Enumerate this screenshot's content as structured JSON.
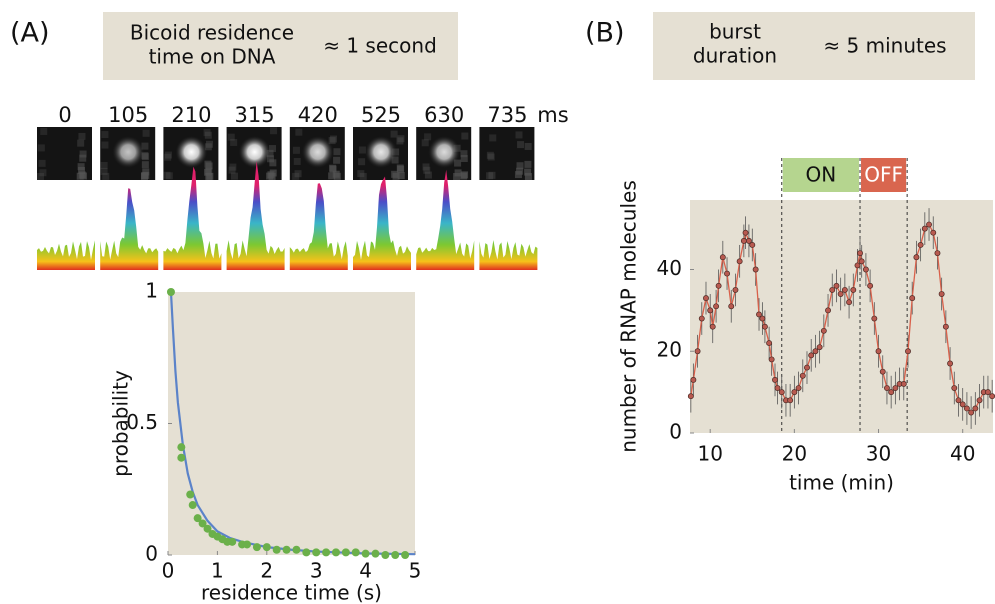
{
  "panels": [
    {
      "label": "(A)",
      "note_lines": [
        "Bicoid residence",
        "time on DNA"
      ],
      "note_value": "≈ 1 second"
    },
    {
      "label": "(B)",
      "note_lines": [
        "burst",
        "duration"
      ],
      "note_value": "≈ 5 minutes"
    }
  ],
  "frames": {
    "times": [
      "0",
      "105",
      "210",
      "315",
      "420",
      "525",
      "630",
      "735"
    ],
    "unit": "ms"
  },
  "chart_data": [
    {
      "type": "scatter",
      "x_label": "residence time (s)",
      "y_label": "probability",
      "xlim": [
        0,
        5
      ],
      "ylim": [
        0,
        1
      ],
      "xticks": [
        0,
        1,
        2,
        3,
        4,
        5
      ],
      "yticks": [
        0,
        0.5,
        1
      ],
      "series": [
        {
          "type": "line",
          "color": "#5b83c9",
          "x": [
            0.06,
            0.1,
            0.15,
            0.2,
            0.3,
            0.4,
            0.5,
            0.6,
            0.8,
            1.0,
            1.25,
            1.5,
            2,
            2.5,
            3,
            4,
            5
          ],
          "values": [
            1,
            0.86,
            0.7,
            0.58,
            0.42,
            0.31,
            0.24,
            0.19,
            0.13,
            0.09,
            0.065,
            0.05,
            0.03,
            0.02,
            0.013,
            0.006,
            0.003
          ]
        },
        {
          "type": "scatter",
          "color": "#6bb04a",
          "x": [
            0.06,
            0.27,
            0.27,
            0.45,
            0.5,
            0.6,
            0.7,
            0.8,
            0.9,
            1.0,
            1.1,
            1.2,
            1.3,
            1.5,
            1.6,
            1.8,
            2.0,
            2.2,
            2.4,
            2.6,
            2.8,
            3.0,
            3.2,
            3.4,
            3.6,
            3.8,
            4.0,
            4.2,
            4.4,
            4.6,
            4.8
          ],
          "values": [
            1.0,
            0.41,
            0.37,
            0.23,
            0.19,
            0.14,
            0.12,
            0.1,
            0.08,
            0.07,
            0.06,
            0.05,
            0.05,
            0.04,
            0.04,
            0.03,
            0.03,
            0.02,
            0.02,
            0.02,
            0.01,
            0.01,
            0.01,
            0.01,
            0.01,
            0.01,
            0.005,
            0.005,
            0,
            0,
            0
          ]
        }
      ]
    },
    {
      "type": "line",
      "x_label": "time (min)",
      "y_label": "number of RNAP molecules",
      "xlim": [
        7.6,
        43.6
      ],
      "ylim": [
        0,
        57
      ],
      "xticks": [
        10,
        20,
        30,
        40
      ],
      "yticks": [
        0,
        20,
        40
      ],
      "vlines": [
        18.5,
        27.8,
        33.4
      ],
      "spans": [
        {
          "label": "ON",
          "from": 18.5,
          "to": 27.8,
          "color": "#b5d58f",
          "text_color": "#111"
        },
        {
          "label": "OFF",
          "from": 27.8,
          "to": 33.4,
          "color": "#d9664f",
          "text_color": "#fff"
        }
      ],
      "series": [
        {
          "type": "line",
          "color": "#d9604a",
          "marker_color": "#b85a50",
          "error": 4,
          "x": [
            7.7,
            8,
            8.5,
            9,
            9.5,
            10,
            10.3,
            10.7,
            11,
            11.5,
            12,
            12.5,
            13,
            13.5,
            14,
            14.2,
            14.6,
            15,
            15.4,
            15.8,
            16.2,
            16.5,
            17,
            17.3,
            17.7,
            18,
            18.5,
            19,
            19.5,
            20,
            20.5,
            21,
            21.5,
            22,
            22.5,
            23,
            23.5,
            24,
            24.5,
            25,
            25.5,
            26,
            26.5,
            27,
            27.5,
            27.8,
            28,
            28.5,
            29,
            29.5,
            30,
            30.5,
            31,
            31.5,
            32,
            32.5,
            33,
            33.5,
            34,
            34.5,
            35,
            35.5,
            36,
            36.5,
            37,
            37.5,
            38,
            38.5,
            39,
            39.5,
            40,
            40.5,
            41,
            41.5,
            42,
            42.5,
            43,
            43.5
          ],
          "values": [
            9,
            13,
            20,
            28,
            33,
            30,
            26,
            31,
            36,
            43,
            39,
            31,
            35,
            42,
            47,
            49,
            47,
            46,
            40,
            29,
            28,
            26,
            22,
            18,
            13,
            11,
            10,
            8,
            8,
            10,
            11,
            14,
            16,
            19,
            20,
            21,
            25,
            30,
            35,
            36,
            34,
            35,
            32,
            35,
            41,
            44,
            42,
            40,
            36,
            28,
            20,
            15,
            11,
            10,
            11,
            12,
            12,
            20,
            33,
            43,
            46,
            50,
            51,
            49,
            44,
            34,
            26,
            17,
            11,
            8,
            7,
            6,
            5,
            6,
            8,
            10,
            10,
            9
          ]
        }
      ]
    }
  ]
}
